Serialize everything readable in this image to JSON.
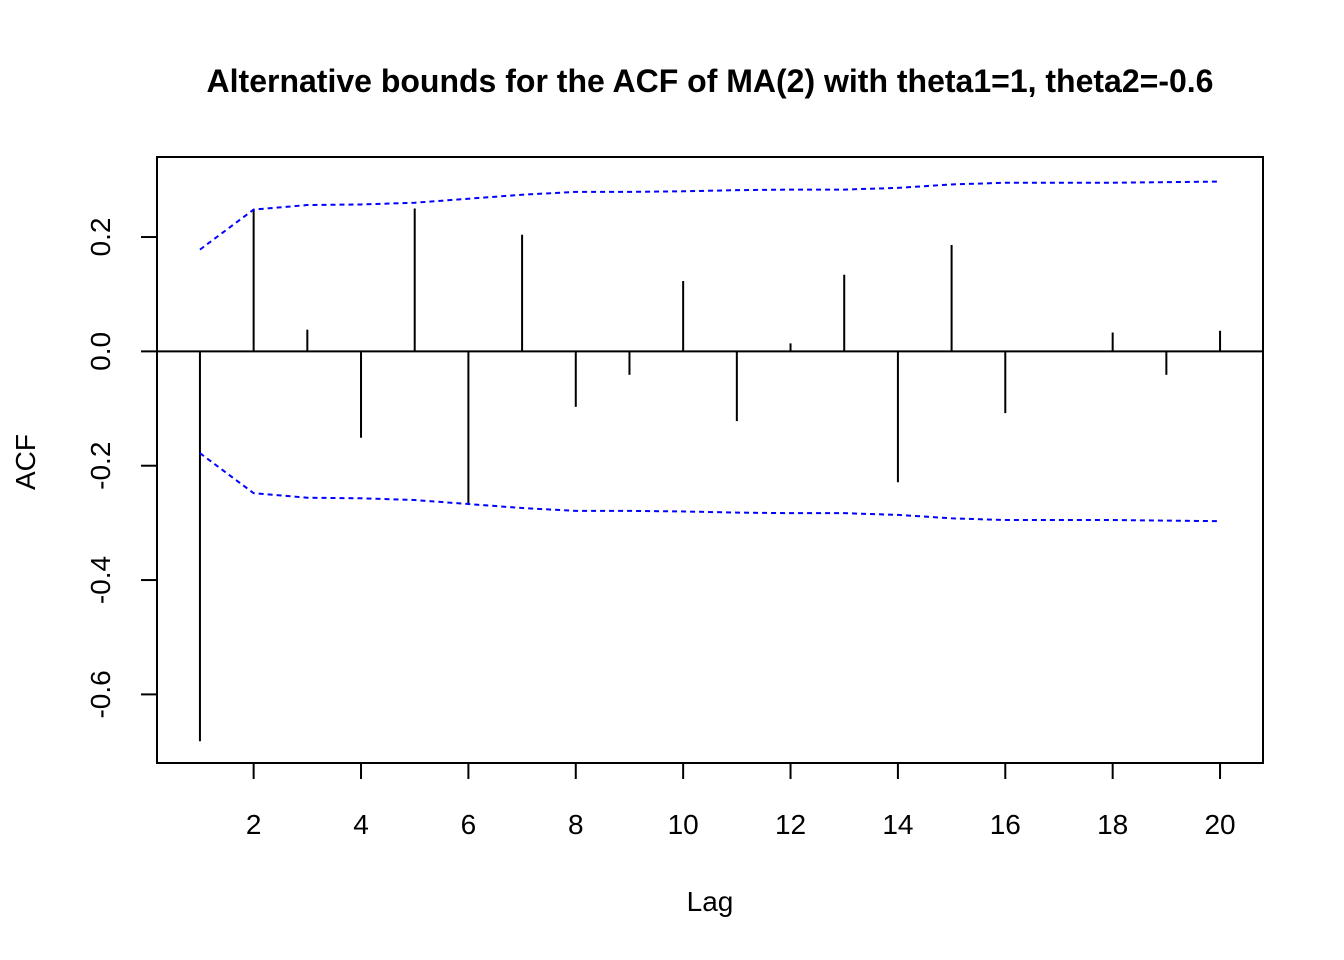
{
  "chart_data": {
    "type": "bar",
    "title": "Alternative bounds for the ACF of MA(2) with theta1=1, theta2=-0.6",
    "xlabel": "Lag",
    "ylabel": "ACF",
    "xlim": [
      0.2,
      20.8
    ],
    "ylim": [
      -0.72,
      0.34
    ],
    "x_ticks": [
      2,
      4,
      6,
      8,
      10,
      12,
      14,
      16,
      18,
      20
    ],
    "x_tick_labels": [
      "2",
      "4",
      "6",
      "8",
      "10",
      "12",
      "14",
      "16",
      "18",
      "20"
    ],
    "y_ticks": [
      -0.6,
      -0.4,
      -0.2,
      0.0,
      0.2
    ],
    "y_tick_labels": [
      "-0.6",
      "-0.4",
      "-0.2",
      "0.0",
      "0.2"
    ],
    "lags": [
      1,
      2,
      3,
      4,
      5,
      6,
      7,
      8,
      9,
      10,
      11,
      12,
      13,
      14,
      15,
      16,
      17,
      18,
      19,
      20
    ],
    "acf": [
      -0.682,
      0.248,
      0.038,
      -0.151,
      0.25,
      -0.268,
      0.204,
      -0.097,
      -0.041,
      0.123,
      -0.122,
      0.014,
      0.134,
      -0.229,
      0.186,
      -0.108,
      0.0,
      0.033,
      -0.041,
      0.036
    ],
    "bounds": [
      0.178,
      0.248,
      0.256,
      0.257,
      0.26,
      0.267,
      0.274,
      0.279,
      0.279,
      0.28,
      0.282,
      0.283,
      0.283,
      0.286,
      0.292,
      0.295,
      0.295,
      0.295,
      0.296,
      0.297
    ],
    "colors": {
      "bars": "#000000",
      "bounds": "#0000ff",
      "zero_line": "#000000",
      "frame": "#000000"
    },
    "grid": false,
    "legend": "none"
  }
}
